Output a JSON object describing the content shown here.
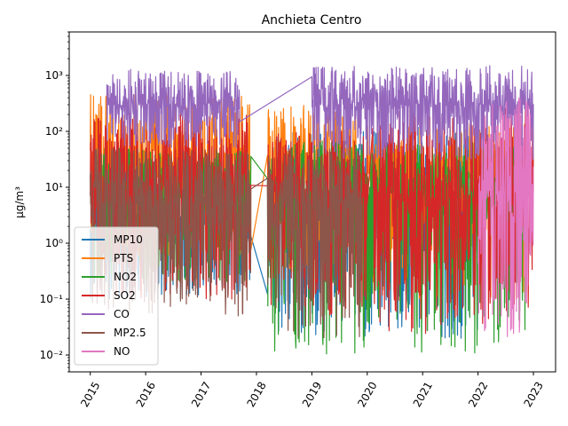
{
  "chart_data": {
    "type": "line",
    "title": "Anchieta Centro",
    "xlabel": "",
    "ylabel": "µg/m³",
    "yscale": "log",
    "ylim": [
      0.005,
      6000
    ],
    "xlim": [
      2014.62,
      2023.4
    ],
    "xticks": [
      {
        "value": 2015,
        "label": "2015"
      },
      {
        "value": 2016,
        "label": "2016"
      },
      {
        "value": 2017,
        "label": "2017"
      },
      {
        "value": 2018,
        "label": "2018"
      },
      {
        "value": 2019,
        "label": "2019"
      },
      {
        "value": 2020,
        "label": "2020"
      },
      {
        "value": 2021,
        "label": "2021"
      },
      {
        "value": 2022,
        "label": "2022"
      },
      {
        "value": 2023,
        "label": "2023"
      }
    ],
    "yticks": [
      {
        "value": 0.01,
        "label": "10⁻²"
      },
      {
        "value": 0.1,
        "label": "10⁻¹"
      },
      {
        "value": 1,
        "label": "10⁰"
      },
      {
        "value": 10,
        "label": "10¹"
      },
      {
        "value": 100,
        "label": "10²"
      },
      {
        "value": 1000,
        "label": "10³"
      }
    ],
    "legend_position": "lower-left",
    "grid": false,
    "series": [
      {
        "name": "MP10",
        "color": "#1f77b4",
        "segments": [
          {
            "start": 2015.0,
            "end": 2017.9,
            "low": 0.1,
            "high": 30,
            "median": 3
          },
          {
            "start": 2018.2,
            "end": 2022.0,
            "low": 0.02,
            "high": 120,
            "median": 3
          }
        ]
      },
      {
        "name": "PTS",
        "color": "#ff7f0e",
        "segments": [
          {
            "start": 2015.0,
            "end": 2017.9,
            "low": 0.5,
            "high": 500,
            "median": 25
          },
          {
            "start": 2018.2,
            "end": 2019.8,
            "low": 0.3,
            "high": 300,
            "median": 30
          },
          {
            "start": 2020.0,
            "end": 2022.9,
            "low": 0.1,
            "high": 150,
            "median": 15
          }
        ]
      },
      {
        "name": "NO2",
        "color": "#2ca02c",
        "segments": [
          {
            "start": 2015.0,
            "end": 2017.9,
            "low": 0.2,
            "high": 50,
            "median": 8
          },
          {
            "start": 2018.2,
            "end": 2022.9,
            "low": 0.01,
            "high": 70,
            "median": 8
          }
        ]
      },
      {
        "name": "SO2",
        "color": "#d62728",
        "segments": [
          {
            "start": 2015.0,
            "end": 2017.9,
            "low": 0.1,
            "high": 200,
            "median": 10
          },
          {
            "start": 2018.2,
            "end": 2020.0,
            "low": 0.05,
            "high": 100,
            "median": 8
          },
          {
            "start": 2020.1,
            "end": 2023.0,
            "low": 0.02,
            "high": 300,
            "median": 6
          }
        ]
      },
      {
        "name": "CO",
        "color": "#9467bd",
        "segments": [
          {
            "start": 2015.3,
            "end": 2017.7,
            "low": 50,
            "high": 1300,
            "median": 300
          },
          {
            "start": 2019.0,
            "end": 2023.0,
            "low": 30,
            "high": 1500,
            "median": 300
          }
        ]
      },
      {
        "name": "MP2.5",
        "color": "#8c564b",
        "segments": [
          {
            "start": 2015.0,
            "end": 2017.9,
            "low": 0.05,
            "high": 50,
            "median": 5
          },
          {
            "start": 2018.2,
            "end": 2019.9,
            "low": 0.02,
            "high": 50,
            "median": 5
          }
        ]
      },
      {
        "name": "NO",
        "color": "#e377c2",
        "segments": [
          {
            "start": 2022.0,
            "end": 2023.0,
            "low": 0.02,
            "high": 400,
            "median": 8
          }
        ]
      }
    ]
  }
}
